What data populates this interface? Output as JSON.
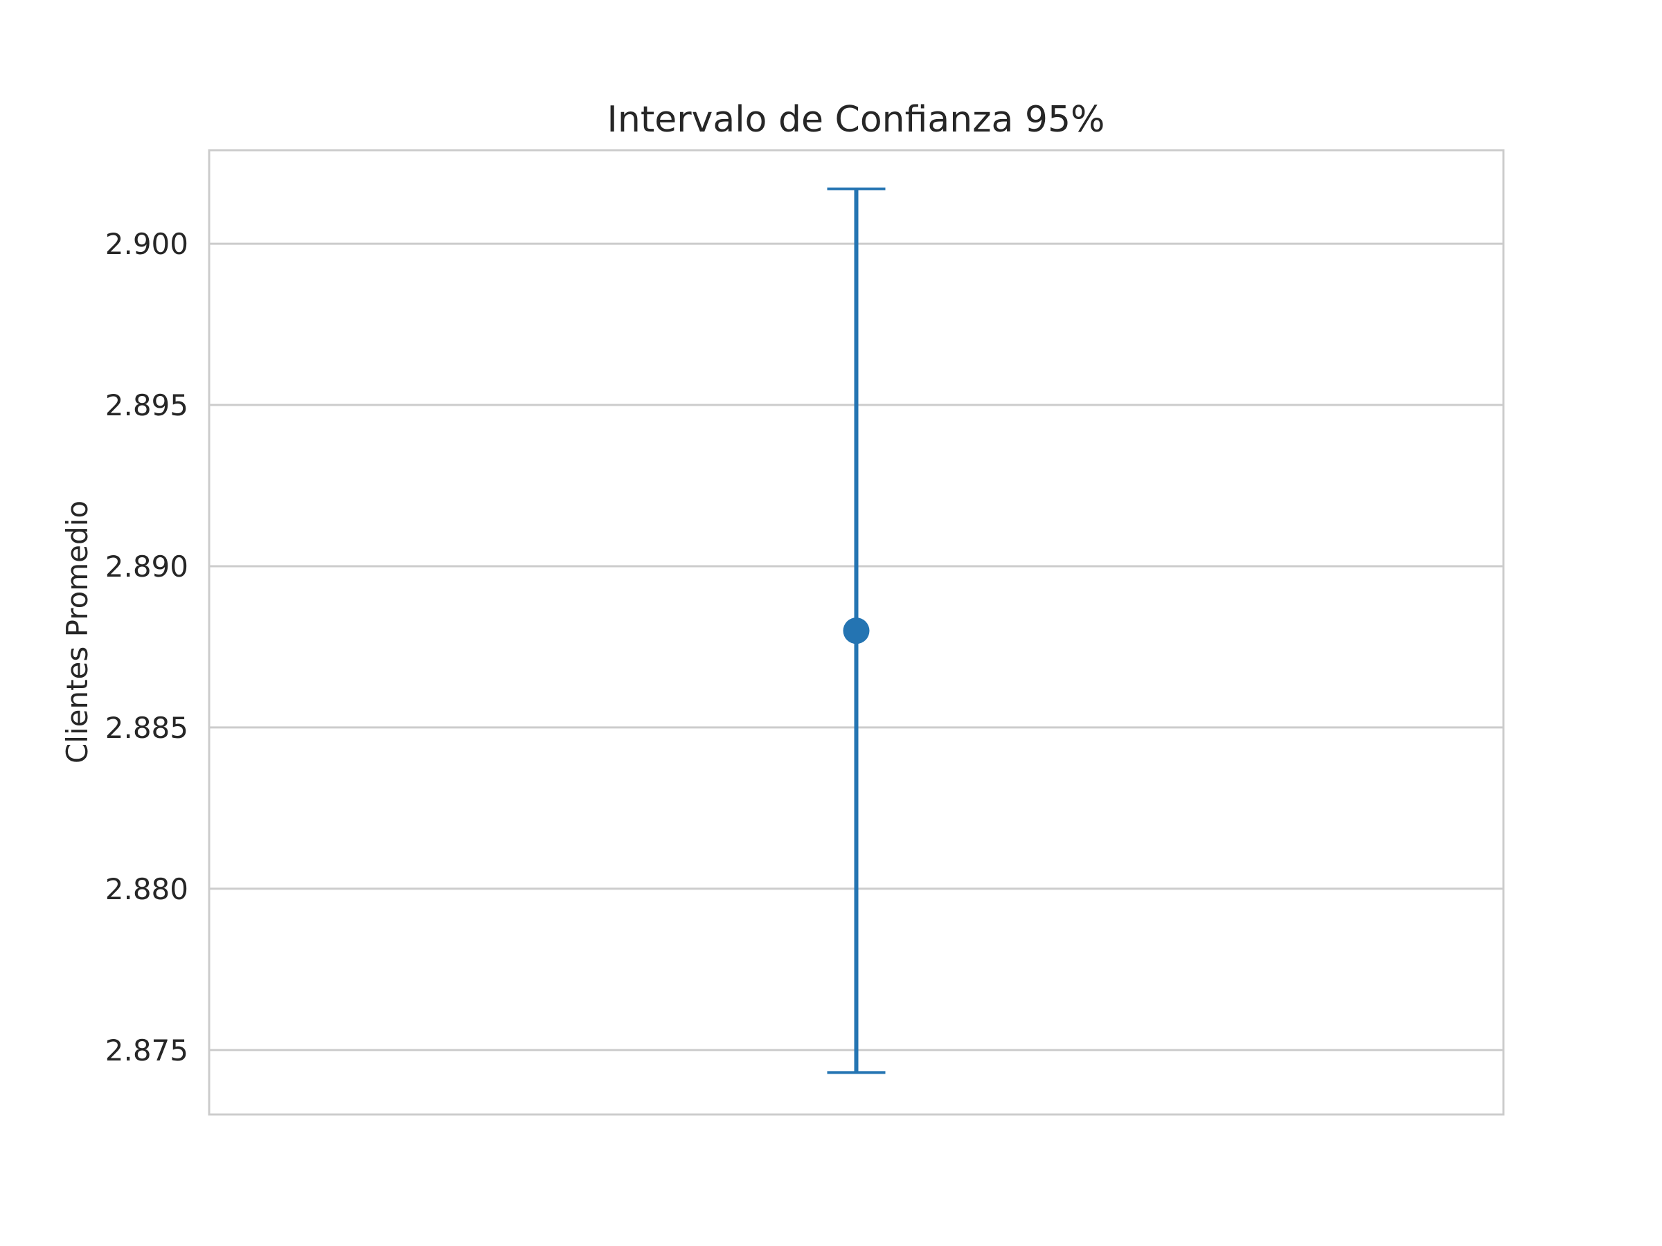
{
  "chart_data": {
    "type": "scatter",
    "title": "Intervalo de Confianza 95%",
    "xlabel": "",
    "ylabel": "Clientes Promedio",
    "ylim": [
      2.873,
      2.9029
    ],
    "yticks": [
      2.875,
      2.88,
      2.885,
      2.89,
      2.895,
      2.9
    ],
    "ytick_labels": [
      "2.875",
      "2.880",
      "2.885",
      "2.890",
      "2.895",
      "2.900"
    ],
    "grid": true,
    "legend": "none",
    "points": [
      {
        "x": 0,
        "y": 2.888,
        "error_low": 2.8743,
        "error_high": 2.9017
      }
    ],
    "colors": {
      "series": "#2474b2",
      "grid": "#cccccc",
      "frame": "#cccccc",
      "text": "#262626"
    }
  }
}
